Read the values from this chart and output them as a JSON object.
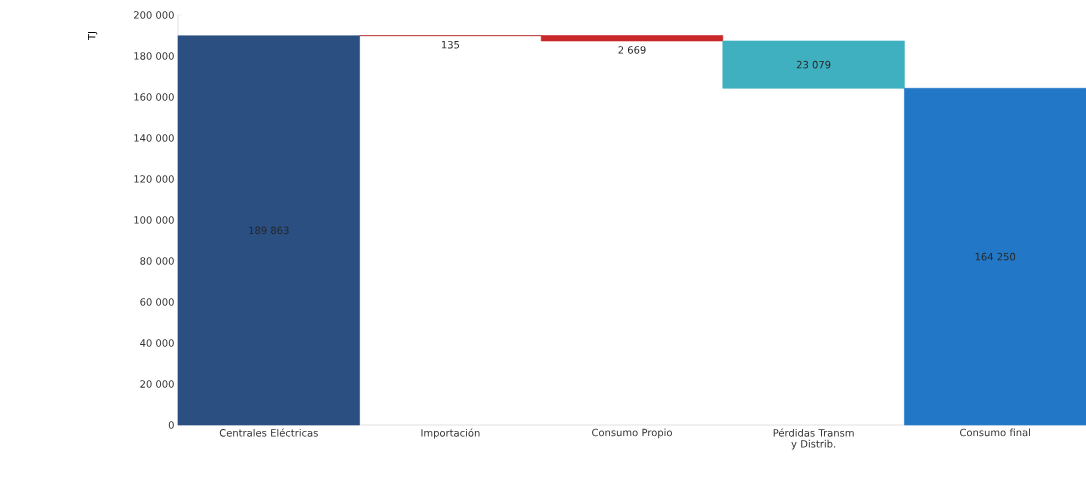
{
  "chart_data": {
    "type": "bar",
    "ylabel": "TJ",
    "categories": [
      "Centrales Eléctricas",
      "Importación",
      "Consumo Propio",
      "Pérdidas Transm y Distrib.",
      "Consumo final"
    ],
    "values": [
      189863,
      135,
      2669,
      23079,
      164250
    ],
    "base": [
      0,
      189863,
      187329,
      164250,
      0
    ],
    "colors": [
      "#2b4f80",
      "#b02a2a",
      "#c8282a",
      "#3fb0bf",
      "#2278c6"
    ],
    "value_labels": [
      "189 863",
      "135",
      "2 669",
      "23 079",
      "164 250"
    ],
    "ylim": [
      0,
      200000
    ],
    "yticks": [
      {
        "value": 0,
        "label": "0"
      },
      {
        "value": 20000,
        "label": "20 000"
      },
      {
        "value": 40000,
        "label": "40 000"
      },
      {
        "value": 60000,
        "label": "60 000"
      },
      {
        "value": 80000,
        "label": "80 000"
      },
      {
        "value": 100000,
        "label": "100 000"
      },
      {
        "value": 120000,
        "label": "120 000"
      },
      {
        "value": 140000,
        "label": "140 000"
      },
      {
        "value": 160000,
        "label": "160 000"
      },
      {
        "value": 180000,
        "label": "180 000"
      },
      {
        "value": 200000,
        "label": "200 000"
      }
    ],
    "grid": false
  }
}
